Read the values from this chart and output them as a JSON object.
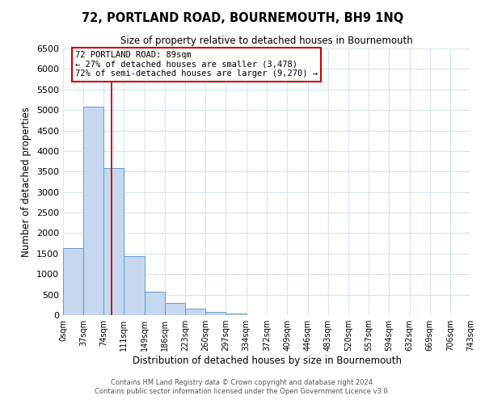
{
  "title": "72, PORTLAND ROAD, BOURNEMOUTH, BH9 1NQ",
  "subtitle": "Size of property relative to detached houses in Bournemouth",
  "xlabel": "Distribution of detached houses by size in Bournemouth",
  "ylabel": "Number of detached properties",
  "bin_edges": [
    0,
    37,
    74,
    111,
    149,
    186,
    223,
    260,
    297,
    334,
    372,
    409,
    446,
    483,
    520,
    557,
    594,
    632,
    669,
    706,
    743
  ],
  "bar_heights": [
    1630,
    5080,
    3580,
    1430,
    580,
    300,
    150,
    70,
    40,
    0,
    0,
    0,
    0,
    0,
    0,
    0,
    0,
    0,
    0,
    0
  ],
  "bar_color": "#c5d8f0",
  "bar_edgecolor": "#6699cc",
  "vline_x": 89,
  "vline_color": "#cc0000",
  "ylim": [
    0,
    6500
  ],
  "yticks": [
    0,
    500,
    1000,
    1500,
    2000,
    2500,
    3000,
    3500,
    4000,
    4500,
    5000,
    5500,
    6000,
    6500
  ],
  "annotation_title": "72 PORTLAND ROAD: 89sqm",
  "annotation_line1": "← 27% of detached houses are smaller (3,478)",
  "annotation_line2": "72% of semi-detached houses are larger (9,270) →",
  "footnote1": "Contains HM Land Registry data © Crown copyright and database right 2024.",
  "footnote2": "Contains public sector information licensed under the Open Government Licence v3.0.",
  "tick_labels": [
    "0sqm",
    "37sqm",
    "74sqm",
    "111sqm",
    "149sqm",
    "186sqm",
    "223sqm",
    "260sqm",
    "297sqm",
    "334sqm",
    "372sqm",
    "409sqm",
    "446sqm",
    "483sqm",
    "520sqm",
    "557sqm",
    "594sqm",
    "632sqm",
    "669sqm",
    "706sqm",
    "743sqm"
  ],
  "grid_color": "#d8e4f0",
  "background_color": "#ffffff"
}
